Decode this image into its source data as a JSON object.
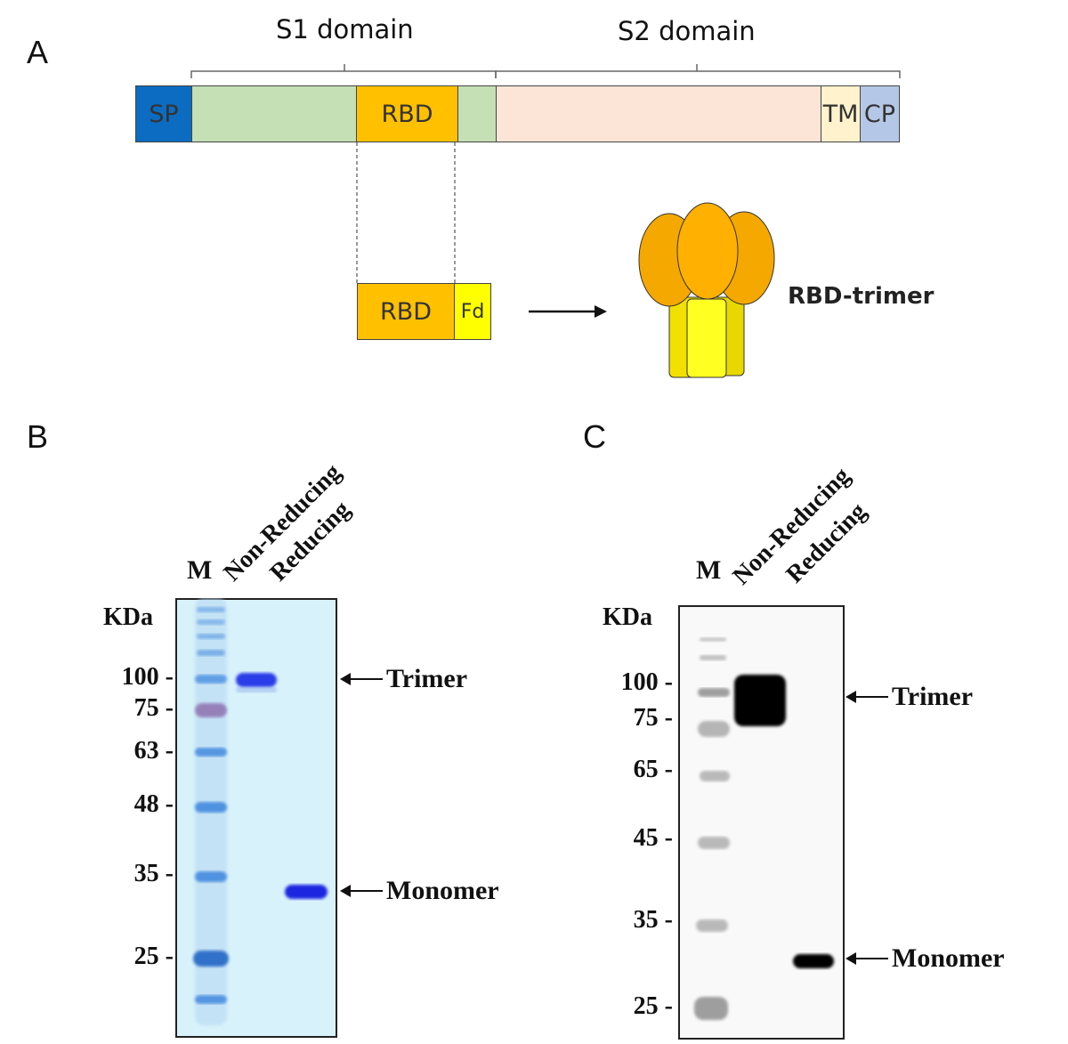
{
  "panels": {
    "a": "A",
    "b": "B",
    "c": "C"
  },
  "schematic": {
    "s1_label": "S1 domain",
    "s2_label": "S2 domain",
    "segments": {
      "sp": "SP",
      "rbd": "RBD",
      "tm": "TM",
      "cp": "CP"
    },
    "construct": {
      "rbd": "RBD",
      "fd": "Fd"
    },
    "trimer_label": "RBD-trimer",
    "colors": {
      "sp": "#0b6cc1",
      "s1": "#c5e0b4",
      "rbd": "#ffc000",
      "s2": "#fce4d6",
      "tm": "#fff2cc",
      "cp": "#b4c7e7",
      "fd": "#ffff00"
    }
  },
  "gel_b": {
    "marker_lane": "M",
    "lanes": [
      "Non-Reducing",
      "Reducing"
    ],
    "unit": "KDa",
    "markers": [
      "100",
      "75",
      "63",
      "48",
      "35",
      "25"
    ],
    "annotations": {
      "trimer": "Trimer",
      "monomer": "Monomer"
    }
  },
  "gel_c": {
    "marker_lane": "M",
    "lanes": [
      "Non-Reducing",
      "Reducing"
    ],
    "unit": "KDa",
    "markers": [
      "100",
      "75",
      "65",
      "45",
      "35",
      "25"
    ],
    "annotations": {
      "trimer": "Trimer",
      "monomer": "Monomer"
    }
  }
}
